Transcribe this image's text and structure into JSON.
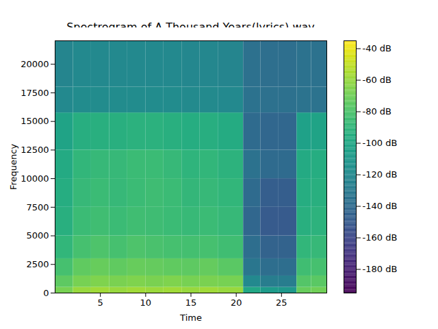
{
  "chart_data": {
    "type": "heatmap",
    "title": "Spectrogram of A Thousand Years(lyrics).wav",
    "x_label": "Time",
    "y_label": "Frequency",
    "color": "viridis",
    "xlim": [
      0,
      30
    ],
    "xticks": [
      5,
      10,
      15,
      20,
      25
    ],
    "ylim": [
      0,
      22050
    ],
    "yticks": [
      0,
      2500,
      5000,
      7500,
      10000,
      12500,
      15000,
      17500,
      20000
    ],
    "time_edges": [
      0,
      2,
      4,
      6,
      8,
      10,
      12,
      14,
      16,
      18,
      20.8,
      22.7,
      24.7,
      26.7,
      28.3,
      30
    ],
    "frequency_edges": [
      0,
      500,
      1500,
      3000,
      5000,
      7500,
      10000,
      12500,
      15750,
      18000,
      22050
    ],
    "cells": [
      [
        -68,
        -60,
        -58,
        -60,
        -58,
        -59,
        -58,
        -60,
        -58,
        -60,
        -100,
        -108,
        -110,
        -72,
        -70
      ],
      [
        -75,
        -68,
        -66,
        -67,
        -66,
        -67,
        -66,
        -68,
        -67,
        -68,
        -120,
        -128,
        -128,
        -78,
        -76
      ],
      [
        -82,
        -74,
        -72,
        -74,
        -72,
        -73,
        -74,
        -75,
        -73,
        -76,
        -132,
        -138,
        -138,
        -84,
        -82
      ],
      [
        -90,
        -82,
        -80,
        -82,
        -80,
        -81,
        -82,
        -83,
        -82,
        -84,
        -138,
        -145,
        -145,
        -90,
        -88
      ],
      [
        -94,
        -86,
        -84,
        -86,
        -84,
        -85,
        -86,
        -87,
        -86,
        -88,
        -142,
        -150,
        -150,
        -94,
        -92
      ],
      [
        -96,
        -88,
        -86,
        -88,
        -86,
        -85,
        -86,
        -89,
        -88,
        -90,
        -140,
        -148,
        -148,
        -96,
        -94
      ],
      [
        -98,
        -90,
        -88,
        -88,
        -86,
        -86,
        -88,
        -91,
        -90,
        -92,
        -135,
        -140,
        -140,
        -98,
        -96
      ],
      [
        -102,
        -95,
        -94,
        -94,
        -93,
        -93,
        -94,
        -96,
        -95,
        -97,
        -140,
        -142,
        -142,
        -104,
        -102
      ],
      [
        -120,
        -118,
        -118,
        -118,
        -118,
        -118,
        -118,
        -119,
        -119,
        -120,
        -135,
        -136,
        -136,
        -134,
        -134
      ],
      [
        -122,
        -120,
        -120,
        -120,
        -120,
        -120,
        -120,
        -121,
        -121,
        -122,
        -136,
        -137,
        -137,
        -135,
        -135
      ]
    ],
    "colorbar": {
      "range": [
        -195,
        -35
      ],
      "ticks": [
        {
          "value": -40,
          "label": "-40 dB"
        },
        {
          "value": -60,
          "label": "-60 dB"
        },
        {
          "value": -80,
          "label": "-80 dB"
        },
        {
          "value": -100,
          "label": "-100 dB"
        },
        {
          "value": -120,
          "label": "-120 dB"
        },
        {
          "value": -140,
          "label": "-140 dB"
        },
        {
          "value": -160,
          "label": "-160 dB"
        },
        {
          "value": -180,
          "label": "-180 dB"
        }
      ]
    }
  }
}
